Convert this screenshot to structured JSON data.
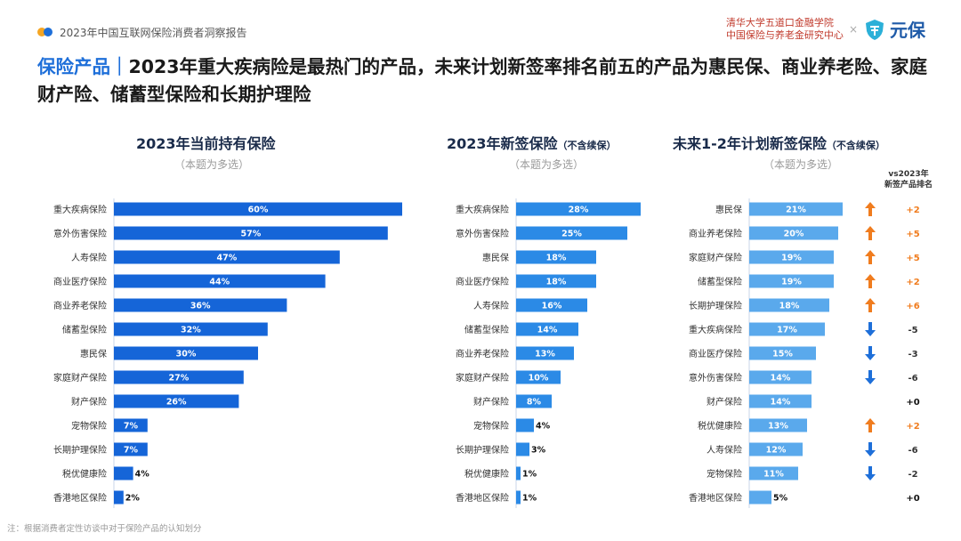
{
  "header": {
    "report_title": "2023年中国互联网保险消费者洞察报告",
    "institution_line1": "清华大学五道口金融学院",
    "institution_line2": "中国保险与养老金研究中心",
    "cross": "×",
    "brand_name": "元保"
  },
  "headline": {
    "prefix": "保险产品｜",
    "text": "2023年重大疾病险是最热门的产品，未来计划新签率排名前五的产品为惠民保、商业养老险、家庭财产险、储蓄型保险和长期护理险"
  },
  "panels": [
    {
      "title": "2023年当前持有保险",
      "suffix": "",
      "subtitle": "（本题为多选）"
    },
    {
      "title": "2023年新签保险",
      "suffix": "（不含续保）",
      "subtitle": "（本题为多选）"
    },
    {
      "title": "未来1-2年计划新签保险",
      "suffix": "（不含续保）",
      "subtitle": "（本题为多选）"
    }
  ],
  "rank_header_line1": "vs2023年",
  "rank_header_line2": "新签产品排名",
  "footer": "注：根据消费者定性访谈中对于保险产品的认知划分",
  "colors": {
    "bar_dark": "#1565d8",
    "bar_mid": "#2b8ae6",
    "bar_light": "#5aa9ec",
    "up_arrow": "#f07c1e",
    "down_arrow": "#1e6fd9",
    "dot_orange": "#f5a623",
    "dot_blue": "#1e6fd9"
  },
  "chart_data": [
    {
      "type": "bar",
      "orientation": "horizontal",
      "title": "2023年当前持有保险",
      "categories": [
        "重大疾病保险",
        "意外伤害保险",
        "人寿保险",
        "商业医疗保险",
        "商业养老保险",
        "储蓄型保险",
        "惠民保",
        "家庭财产保险",
        "财产保险",
        "宠物保险",
        "长期护理保险",
        "税优健康险",
        "香港地区保险"
      ],
      "values": [
        60,
        57,
        47,
        44,
        36,
        32,
        30,
        27,
        26,
        7,
        7,
        4,
        2
      ],
      "unit": "%"
    },
    {
      "type": "bar",
      "orientation": "horizontal",
      "title": "2023年新签保险（不含续保）",
      "categories": [
        "重大疾病保险",
        "意外伤害保险",
        "惠民保",
        "商业医疗保险",
        "人寿保险",
        "储蓄型保险",
        "商业养老保险",
        "家庭财产保险",
        "财产保险",
        "宠物保险",
        "长期护理保险",
        "税优健康险",
        "香港地区保险"
      ],
      "values": [
        28,
        25,
        18,
        18,
        16,
        14,
        13,
        10,
        8,
        4,
        3,
        1,
        1
      ],
      "unit": "%"
    },
    {
      "type": "bar",
      "orientation": "horizontal",
      "title": "未来1-2年计划新签保险（不含续保）",
      "categories": [
        "惠民保",
        "商业养老保险",
        "家庭财产保险",
        "储蓄型保险",
        "长期护理保险",
        "重大疾病保险",
        "商业医疗保险",
        "意外伤害保险",
        "财产保险",
        "税优健康险",
        "人寿保险",
        "宠物保险",
        "香港地区保险"
      ],
      "values": [
        21,
        20,
        19,
        19,
        18,
        17,
        15,
        14,
        14,
        13,
        12,
        11,
        5
      ],
      "unit": "%",
      "rank_change": [
        "+2",
        "+5",
        "+5",
        "+2",
        "+6",
        "-5",
        "-3",
        "-6",
        "+0",
        "+2",
        "-6",
        "-2",
        "+0"
      ],
      "rank_direction": [
        "up",
        "up",
        "up",
        "up",
        "up",
        "down",
        "down",
        "down",
        "none",
        "up",
        "down",
        "down",
        "none"
      ]
    }
  ]
}
